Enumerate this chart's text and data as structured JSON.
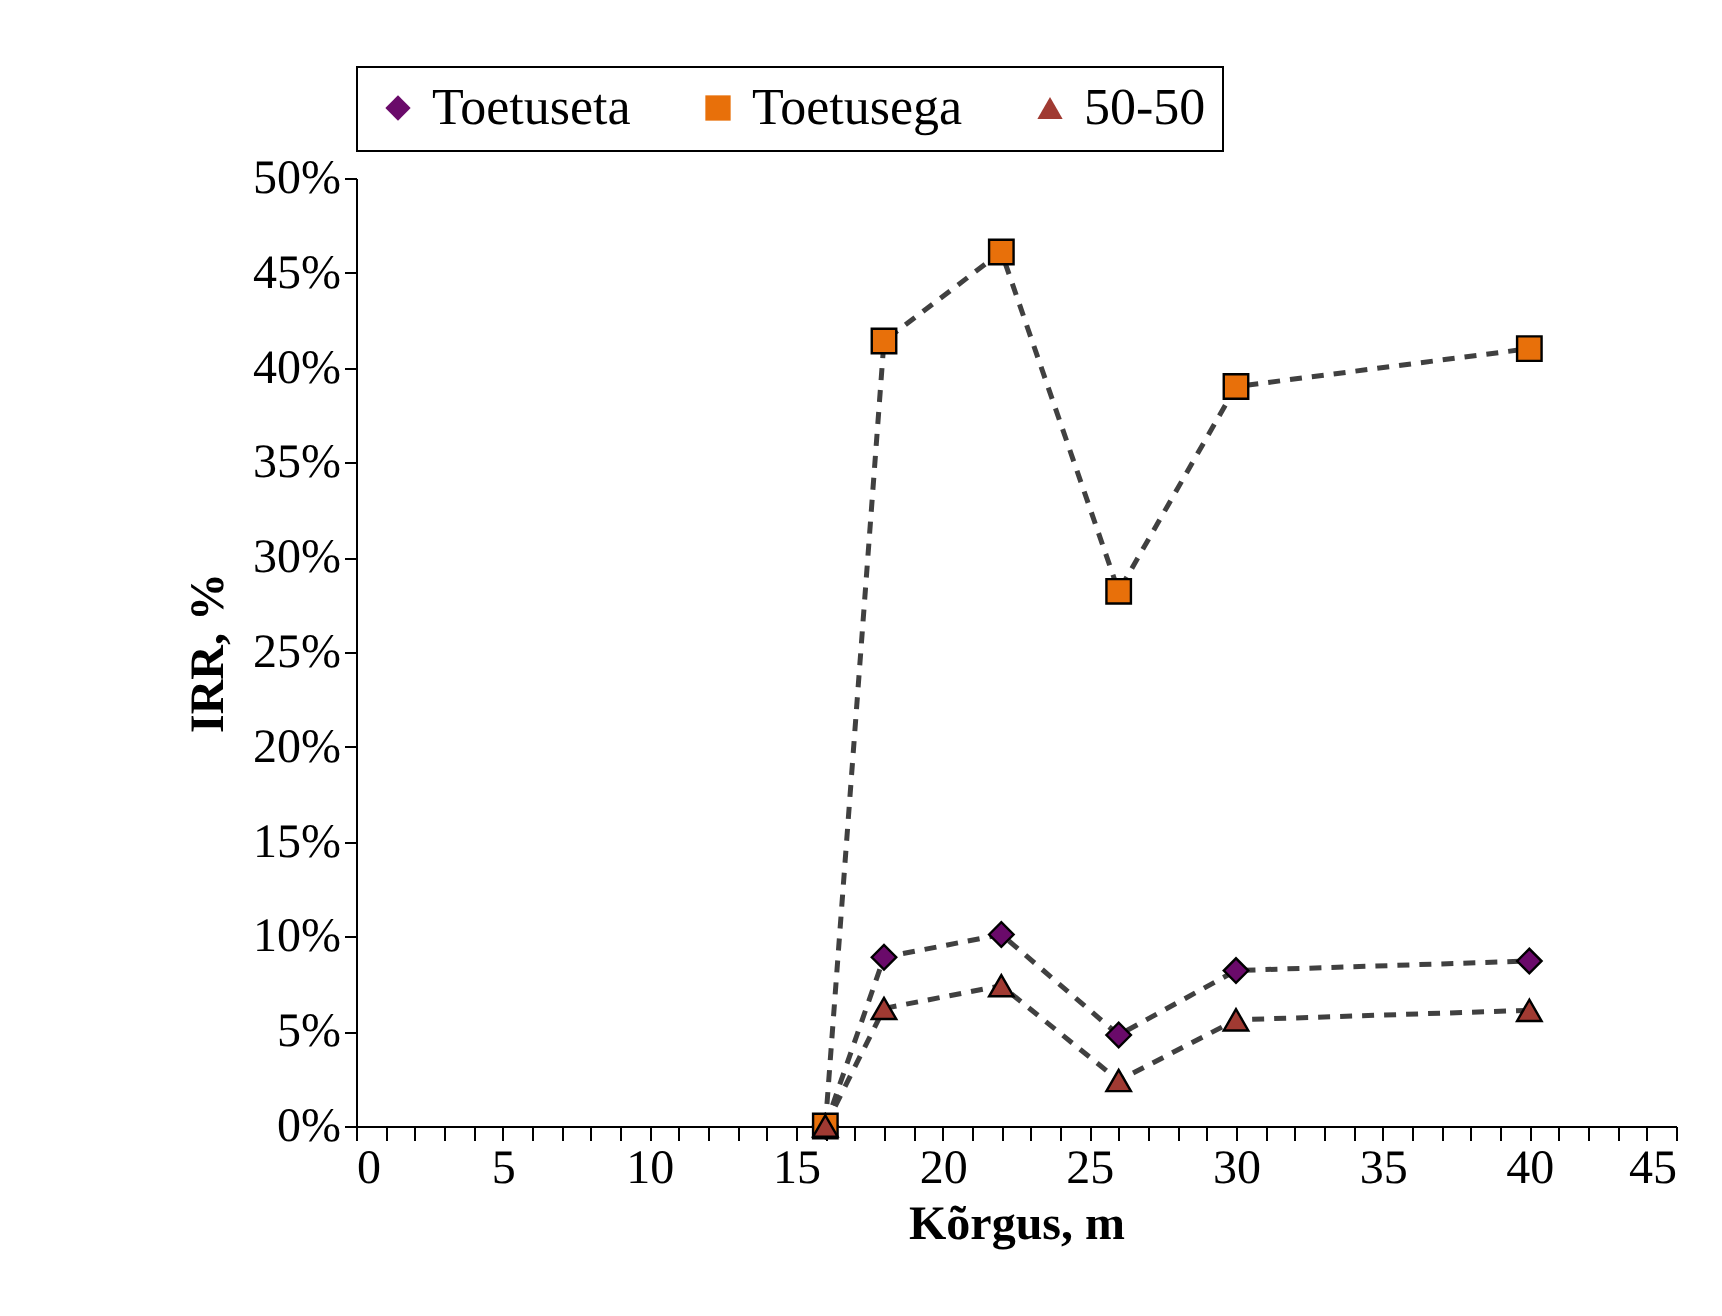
{
  "chart_data": {
    "type": "line",
    "xlabel": "Kõrgus, m",
    "ylabel": "IRR, %",
    "x": [
      16,
      18,
      22,
      26,
      30,
      40
    ],
    "series": [
      {
        "name": "Toetuseta",
        "color": "#6a0a6a",
        "marker": "diamond",
        "values": [
          0,
          8.9,
          10.1,
          4.8,
          8.2,
          8.7
        ]
      },
      {
        "name": "Toetusega",
        "color": "#e8700a",
        "marker": "square",
        "values": [
          0,
          41.4,
          46.1,
          28.2,
          39.0,
          41.0
        ]
      },
      {
        "name": "50-50",
        "color": "#a03a32",
        "marker": "triangle",
        "values": [
          0,
          6.2,
          7.4,
          2.4,
          5.6,
          6.1
        ]
      }
    ],
    "line_style": "dashed",
    "xlim": [
      0,
      45
    ],
    "xticks": [
      0,
      {
        "value": 1,
        "label": null
      },
      {
        "value": 2,
        "label": null
      },
      {
        "value": 3,
        "label": null
      },
      {
        "value": 4,
        "label": null
      },
      5,
      {
        "value": 6,
        "label": null
      },
      {
        "value": 7,
        "label": null
      },
      {
        "value": 8,
        "label": null
      },
      {
        "value": 9,
        "label": null
      },
      10,
      {
        "value": 11,
        "label": null
      },
      {
        "value": 12,
        "label": null
      },
      {
        "value": 13,
        "label": null
      },
      {
        "value": 14,
        "label": null
      },
      15,
      {
        "value": 16,
        "label": null
      },
      {
        "value": 17,
        "label": null
      },
      {
        "value": 18,
        "label": null
      },
      {
        "value": 19,
        "label": null
      },
      20,
      {
        "value": 21,
        "label": null
      },
      {
        "value": 22,
        "label": null
      },
      {
        "value": 23,
        "label": null
      },
      {
        "value": 24,
        "label": null
      },
      25,
      {
        "value": 26,
        "label": null
      },
      {
        "value": 27,
        "label": null
      },
      {
        "value": 28,
        "label": null
      },
      {
        "value": 29,
        "label": null
      },
      30,
      {
        "value": 31,
        "label": null
      },
      {
        "value": 32,
        "label": null
      },
      {
        "value": 33,
        "label": null
      },
      {
        "value": 34,
        "label": null
      },
      35,
      {
        "value": 36,
        "label": null
      },
      {
        "value": 37,
        "label": null
      },
      {
        "value": 38,
        "label": null
      },
      {
        "value": 39,
        "label": null
      },
      40,
      {
        "value": 41,
        "label": null
      },
      {
        "value": 42,
        "label": null
      },
      {
        "value": 43,
        "label": null
      },
      {
        "value": 44,
        "label": null
      },
      45
    ],
    "ylim": [
      0,
      50
    ],
    "yticks": [
      {
        "value": 0,
        "label": "0%"
      },
      {
        "value": 5,
        "label": "5%"
      },
      {
        "value": 10,
        "label": "10%"
      },
      {
        "value": 15,
        "label": "15%"
      },
      {
        "value": 20,
        "label": "20%"
      },
      {
        "value": 25,
        "label": "25%"
      },
      {
        "value": 30,
        "label": "30%"
      },
      {
        "value": 35,
        "label": "35%"
      },
      {
        "value": 40,
        "label": "40%"
      },
      {
        "value": 45,
        "label": "45%"
      },
      {
        "value": 50,
        "label": "50%"
      }
    ],
    "grid": false,
    "legend": "top"
  }
}
